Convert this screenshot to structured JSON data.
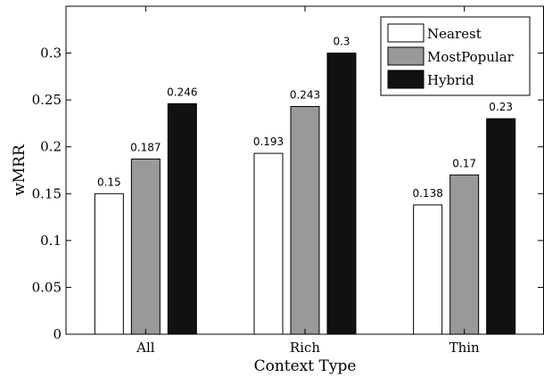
{
  "chart_data": {
    "type": "bar",
    "categories": [
      "All",
      "Rich",
      "Thin"
    ],
    "series": [
      {
        "name": "Nearest",
        "color": "#ffffff",
        "values": [
          0.15,
          0.193,
          0.138
        ],
        "labels": [
          "0.15",
          "0.193",
          "0.138"
        ]
      },
      {
        "name": "MostPopular",
        "color": "#999999",
        "values": [
          0.187,
          0.243,
          0.17
        ],
        "labels": [
          "0.187",
          "0.243",
          "0.17"
        ]
      },
      {
        "name": "Hybrid",
        "color": "#111111",
        "values": [
          0.246,
          0.3,
          0.23
        ],
        "labels": [
          "0.246",
          "0.3",
          "0.23"
        ]
      }
    ],
    "xlabel": "Context Type",
    "ylabel": "wMRR",
    "ylim": [
      0,
      0.35
    ],
    "yticks": [
      0,
      0.05,
      0.1,
      0.15,
      0.2,
      0.25,
      0.3
    ],
    "ytick_labels": [
      "0",
      "0.05",
      "0.1",
      "0.15",
      "0.2",
      "0.25",
      "0.3"
    ],
    "legend_position": "top-right",
    "grid": false
  }
}
